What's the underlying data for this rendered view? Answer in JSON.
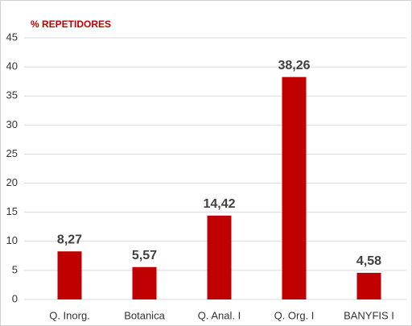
{
  "chart_data": {
    "type": "bar",
    "title": "% REPETIDORES",
    "categories": [
      "Q. Inorg.",
      "Botanica",
      "Q. Anal. I",
      "Q. Org. I",
      "BANYFIS I"
    ],
    "values": [
      8.27,
      5.57,
      14.42,
      38.26,
      4.58
    ],
    "value_labels": [
      "8,27",
      "5,57",
      "14,42",
      "38,26",
      "4,58"
    ],
    "color": "#c00000",
    "ylim": [
      0,
      45
    ],
    "yticks": [
      0,
      5,
      10,
      15,
      20,
      25,
      30,
      35,
      40,
      45
    ],
    "grid": true
  }
}
